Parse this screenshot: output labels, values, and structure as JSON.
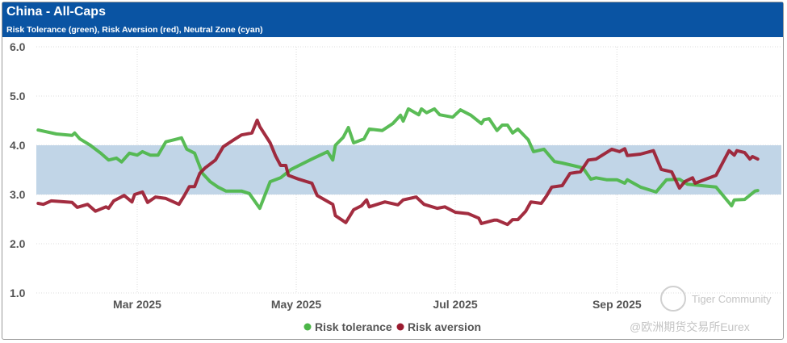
{
  "header": {
    "title": "China - All-Caps",
    "subtitle": "Risk Tolerance (green), Risk Aversion (red), Neutral Zone (cyan)"
  },
  "watermark": {
    "brand": "Tiger Community",
    "handle": "@欧洲期货交易所Eurex"
  },
  "colors": {
    "header": "#0a54a3",
    "green": "#4cb648",
    "red": "#9b1b30",
    "band": "#c1d5e7"
  },
  "chart_data": {
    "type": "line",
    "title": "China - All-Caps",
    "x_unit": "days since 2025-01-01",
    "xlim": [
      20,
      298
    ],
    "ylim": [
      1.0,
      6.0
    ],
    "yticks": [
      1.0,
      2.0,
      3.0,
      4.0,
      5.0,
      6.0
    ],
    "ytick_labels": [
      "1.0",
      "2.0",
      "3.0",
      "4.0",
      "5.0",
      "6.0"
    ],
    "xticks": [
      59,
      120,
      181,
      243
    ],
    "xtick_labels": [
      "Mar 2025",
      "May 2025",
      "Jul 2025",
      "Sep 2025"
    ],
    "grid": true,
    "neutral_zone": [
      3.0,
      4.0
    ],
    "legend": {
      "placement": "bottom",
      "entries": [
        "Risk tolerance",
        "Risk aversion"
      ]
    },
    "series": [
      {
        "name": "Risk tolerance",
        "color": "#4cb648",
        "x": [
          21,
          28,
          34,
          35,
          37,
          41,
          45,
          48,
          51,
          53,
          56,
          59,
          61,
          64,
          67,
          70,
          73,
          76,
          78,
          81,
          84,
          87,
          90,
          93,
          99,
          102,
          106,
          110,
          114,
          118,
          126,
          132,
          134,
          135,
          138,
          140,
          142,
          146,
          148,
          153,
          157,
          160,
          161,
          163,
          167,
          168,
          170,
          173,
          175,
          180,
          183,
          187,
          191,
          192,
          194,
          197,
          199,
          201,
          203,
          205,
          209,
          211,
          215,
          219,
          222,
          226,
          230,
          233,
          235,
          239,
          243,
          246,
          247,
          252,
          258,
          262,
          267,
          270,
          281,
          287,
          288,
          292,
          296,
          297
        ],
        "y": [
          4.31,
          4.23,
          4.2,
          4.25,
          4.13,
          4.0,
          3.84,
          3.7,
          3.74,
          3.66,
          3.84,
          3.8,
          3.87,
          3.8,
          3.8,
          4.07,
          4.11,
          4.15,
          3.92,
          3.84,
          3.43,
          3.26,
          3.15,
          3.07,
          3.07,
          3.02,
          2.72,
          3.26,
          3.34,
          3.51,
          3.72,
          3.87,
          3.7,
          4.0,
          4.16,
          4.36,
          4.05,
          4.13,
          4.33,
          4.3,
          4.44,
          4.61,
          4.49,
          4.74,
          4.62,
          4.74,
          4.66,
          4.74,
          4.62,
          4.57,
          4.72,
          4.61,
          4.44,
          4.52,
          4.54,
          4.3,
          4.41,
          4.41,
          4.25,
          4.33,
          4.11,
          3.87,
          3.92,
          3.67,
          3.64,
          3.59,
          3.54,
          3.31,
          3.34,
          3.3,
          3.3,
          3.23,
          3.3,
          3.15,
          3.05,
          3.3,
          3.31,
          3.21,
          3.15,
          2.77,
          2.89,
          2.9,
          3.07,
          3.08
        ]
      },
      {
        "name": "Risk aversion",
        "color": "#9b1b30",
        "x": [
          21,
          23,
          26,
          34,
          36,
          40,
          43,
          47,
          48,
          50,
          54,
          57,
          58,
          61,
          63,
          66,
          70,
          75,
          77,
          79,
          81,
          83,
          85,
          89,
          92,
          96,
          99,
          103,
          105,
          106,
          110,
          112,
          114,
          116,
          117,
          121,
          126,
          128,
          131,
          134,
          135,
          139,
          142,
          145,
          147,
          148,
          154,
          159,
          161,
          166,
          169,
          174,
          177,
          181,
          186,
          190,
          191,
          196,
          197,
          201,
          203,
          205,
          208,
          210,
          214,
          216,
          218,
          222,
          225,
          229,
          232,
          235,
          241,
          244,
          246,
          247,
          252,
          257,
          260,
          264,
          267,
          269,
          272,
          273,
          281,
          286,
          288,
          289,
          292,
          294,
          295,
          297
        ],
        "y": [
          2.82,
          2.8,
          2.87,
          2.84,
          2.74,
          2.8,
          2.66,
          2.75,
          2.72,
          2.87,
          2.98,
          2.85,
          3.0,
          3.05,
          2.84,
          2.95,
          2.92,
          2.8,
          2.97,
          3.16,
          3.16,
          3.43,
          3.54,
          3.7,
          3.97,
          4.11,
          4.21,
          4.25,
          4.51,
          4.38,
          4.05,
          3.79,
          3.59,
          3.59,
          3.39,
          3.31,
          3.23,
          2.98,
          2.89,
          2.8,
          2.57,
          2.43,
          2.69,
          2.77,
          2.89,
          2.75,
          2.85,
          2.79,
          2.89,
          2.95,
          2.8,
          2.72,
          2.75,
          2.64,
          2.61,
          2.52,
          2.41,
          2.48,
          2.48,
          2.39,
          2.49,
          2.49,
          2.66,
          2.85,
          2.82,
          2.97,
          3.15,
          3.18,
          3.43,
          3.46,
          3.7,
          3.72,
          3.92,
          3.87,
          3.93,
          3.79,
          3.82,
          3.89,
          3.51,
          3.46,
          3.13,
          3.26,
          3.34,
          3.23,
          3.39,
          3.89,
          3.8,
          3.89,
          3.85,
          3.72,
          3.77,
          3.72
        ]
      }
    ]
  }
}
